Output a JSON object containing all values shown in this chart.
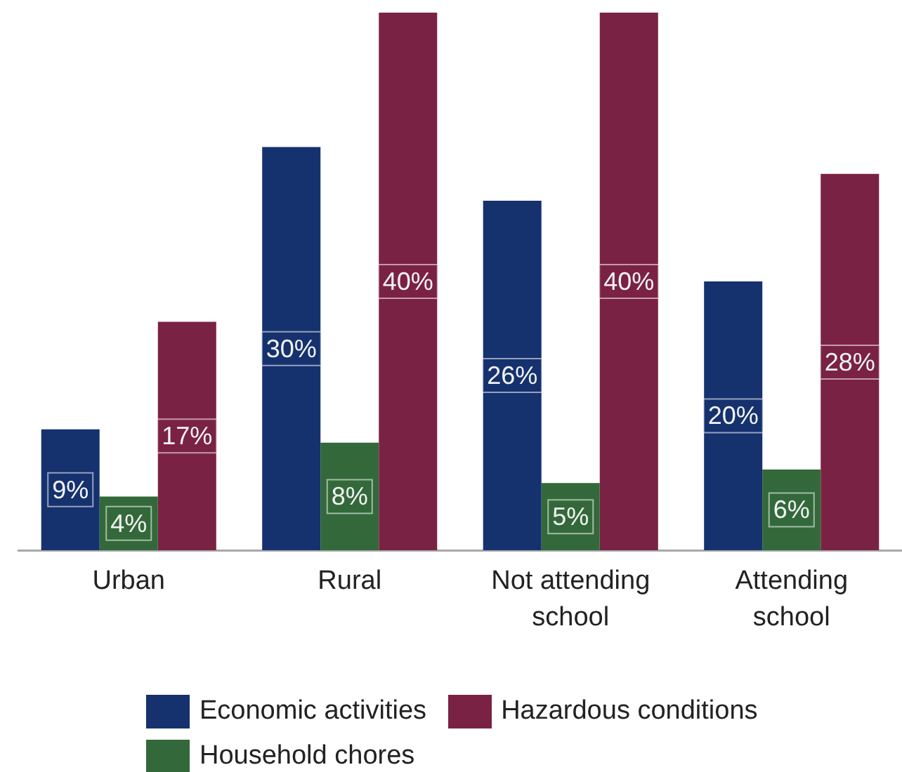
{
  "chart_data": {
    "type": "bar",
    "categories": [
      "Urban",
      "Rural",
      "Not attending school",
      "Attending school"
    ],
    "series": [
      {
        "name": "Economic activities",
        "color": "#15316e",
        "values": [
          9,
          30,
          26,
          20
        ],
        "value_labels": [
          "9%",
          "30%",
          "26%",
          "20%"
        ]
      },
      {
        "name": "Household chores",
        "color": "#33693a",
        "values": [
          4,
          8,
          5,
          6
        ],
        "value_labels": [
          "4%",
          "8%",
          "5%",
          "6%"
        ]
      },
      {
        "name": "Hazardous conditions",
        "color": "#7a2244",
        "values": [
          17,
          40,
          40,
          28
        ],
        "value_labels": [
          "17%",
          "40%",
          "40%",
          "28%"
        ]
      }
    ],
    "legend": "bottom",
    "tick_labels": "x"
  }
}
